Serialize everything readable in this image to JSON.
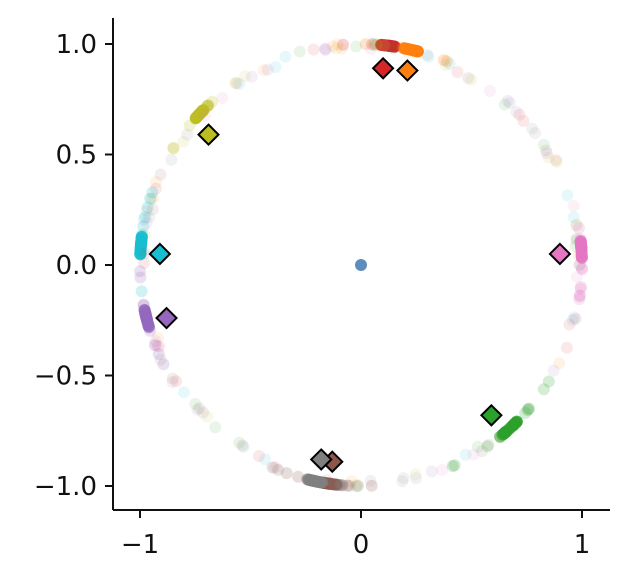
{
  "chart_data": {
    "type": "scatter",
    "title": "",
    "xlabel": "",
    "ylabel": "",
    "xlim": [
      -1.1,
      1.12
    ],
    "ylim": [
      -1.11,
      1.12
    ],
    "grid": false,
    "legend": "none",
    "x_ticks": [
      {
        "value": -1,
        "label": "−1"
      },
      {
        "value": 0,
        "label": "0"
      },
      {
        "value": 1,
        "label": "1"
      }
    ],
    "y_ticks": [
      {
        "value": 1.0,
        "label": "1.0"
      },
      {
        "value": 0.5,
        "label": "0.5"
      },
      {
        "value": 0.0,
        "label": "0.0"
      },
      {
        "value": -0.5,
        "label": "−0.5"
      },
      {
        "value": -1.0,
        "label": "−1.0"
      }
    ],
    "center_point": {
      "x": 0.0,
      "y": 0.0,
      "color": "#4c7fb5"
    },
    "series": [
      {
        "color": "#d62728",
        "cluster_angle_deg": 83,
        "spread_deg": 4,
        "diamond": {
          "x": 0.1,
          "y": 0.89
        }
      },
      {
        "color": "#ff7f0e",
        "cluster_angle_deg": 77,
        "spread_deg": 4,
        "diamond": {
          "x": 0.21,
          "y": 0.88
        }
      },
      {
        "color": "#bcbd22",
        "cluster_angle_deg": 136,
        "spread_deg": 5,
        "diamond": {
          "x": -0.69,
          "y": 0.59
        }
      },
      {
        "color": "#17becf",
        "cluster_angle_deg": 175,
        "spread_deg": 5,
        "diamond": {
          "x": -0.91,
          "y": 0.05
        }
      },
      {
        "color": "#9467bd",
        "cluster_angle_deg": 194,
        "spread_deg": 5,
        "diamond": {
          "x": -0.88,
          "y": -0.24
        }
      },
      {
        "color": "#8c564b",
        "cluster_angle_deg": 262,
        "spread_deg": 4,
        "diamond": {
          "x": -0.13,
          "y": -0.89
        }
      },
      {
        "color": "#7f7f7f",
        "cluster_angle_deg": 258,
        "spread_deg": 4,
        "diamond": {
          "x": -0.18,
          "y": -0.88
        }
      },
      {
        "color": "#2ca02c",
        "cluster_angle_deg": 312,
        "spread_deg": 6,
        "diamond": {
          "x": 0.59,
          "y": -0.68
        }
      },
      {
        "color": "#e377c2",
        "cluster_angle_deg": 4,
        "spread_deg": 5,
        "diamond": {
          "x": 0.9,
          "y": 0.05
        }
      }
    ]
  }
}
